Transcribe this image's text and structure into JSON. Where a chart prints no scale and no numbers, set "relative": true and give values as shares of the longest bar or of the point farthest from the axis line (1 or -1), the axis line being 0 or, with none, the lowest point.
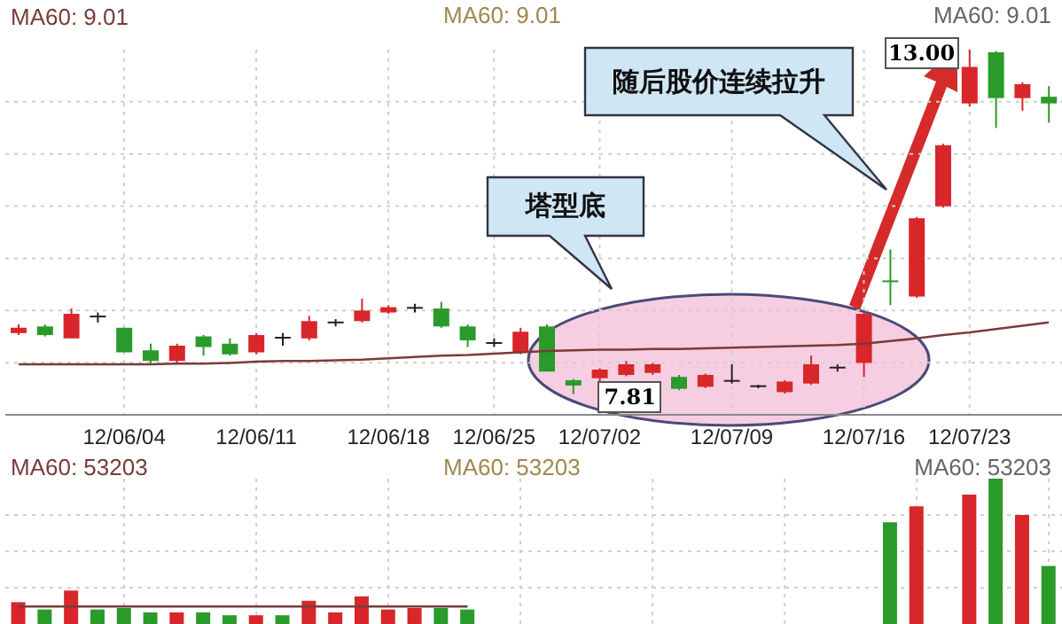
{
  "chart_data": [
    {
      "type": "candlestick",
      "categories": [
        null,
        null,
        null,
        null,
        "12/06/04",
        null,
        null,
        null,
        null,
        "12/06/11",
        null,
        null,
        null,
        null,
        "12/06/18",
        null,
        null,
        null,
        "12/06/25",
        null,
        null,
        null,
        "12/07/02",
        null,
        null,
        null,
        null,
        "12/07/09",
        null,
        null,
        null,
        null,
        "12/07/16",
        null,
        null,
        null,
        "12/07/23",
        null,
        null,
        null
      ],
      "ohlc": [
        [
          8.73,
          8.86,
          8.7,
          8.81
        ],
        [
          8.83,
          8.86,
          8.68,
          8.7
        ],
        [
          8.65,
          9.1,
          8.65,
          9.02
        ],
        [
          8.97,
          9.04,
          8.89,
          8.98
        ],
        [
          8.81,
          8.81,
          8.44,
          8.44
        ],
        [
          8.47,
          8.57,
          8.28,
          8.31
        ],
        [
          8.31,
          8.57,
          8.28,
          8.54
        ],
        [
          8.68,
          8.7,
          8.39,
          8.52
        ],
        [
          8.57,
          8.65,
          8.39,
          8.41
        ],
        [
          8.44,
          8.73,
          8.41,
          8.7
        ],
        [
          8.65,
          8.73,
          8.54,
          8.66
        ],
        [
          8.65,
          8.99,
          8.62,
          8.91
        ],
        [
          8.88,
          8.94,
          8.83,
          8.89
        ],
        [
          8.91,
          9.25,
          8.89,
          9.07
        ],
        [
          9.04,
          9.15,
          9.02,
          9.12
        ],
        [
          9.1,
          9.17,
          9.04,
          9.11
        ],
        [
          9.1,
          9.2,
          8.81,
          8.83
        ],
        [
          8.83,
          8.86,
          8.52,
          8.62
        ],
        [
          8.57,
          8.65,
          8.52,
          8.58
        ],
        [
          8.44,
          8.81,
          8.41,
          8.75
        ],
        [
          8.83,
          8.86,
          8.15,
          8.15
        ],
        [
          8.02,
          8.04,
          7.81,
          7.94
        ],
        [
          8.05,
          8.2,
          7.97,
          8.18
        ],
        [
          8.1,
          8.31,
          8.08,
          8.26
        ],
        [
          8.13,
          8.28,
          8.1,
          8.26
        ],
        [
          8.07,
          8.1,
          7.87,
          7.89
        ],
        [
          7.92,
          8.12,
          7.9,
          8.1
        ],
        [
          8.0,
          8.26,
          7.97,
          8.01
        ],
        [
          7.92,
          7.95,
          7.9,
          7.93
        ],
        [
          7.84,
          8.02,
          7.82,
          8.0
        ],
        [
          7.97,
          8.39,
          7.95,
          8.26
        ],
        [
          8.2,
          8.26,
          8.15,
          8.21
        ],
        [
          8.28,
          9.04,
          8.07,
          9.02
        ],
        [
          9.51,
          9.99,
          9.15,
          9.49
        ],
        [
          9.28,
          10.48,
          9.26,
          10.46
        ],
        [
          10.64,
          11.58,
          10.62,
          11.56
        ],
        [
          12.19,
          13.0,
          12.14,
          12.74
        ],
        [
          12.96,
          12.98,
          11.82,
          12.27
        ],
        [
          12.27,
          12.51,
          12.08,
          12.48
        ],
        [
          12.29,
          12.45,
          11.9,
          12.19
        ]
      ],
      "colors": [
        "#d8262a",
        "#2a9a2a",
        "#d8262a",
        "#222222",
        "#2a9a2a",
        "#2a9a2a",
        "#d8262a",
        "#2a9a2a",
        "#2a9a2a",
        "#d8262a",
        "#222222",
        "#d8262a",
        "#222222",
        "#d8262a",
        "#d8262a",
        "#222222",
        "#2a9a2a",
        "#2a9a2a",
        "#222222",
        "#d8262a",
        "#2a9a2a",
        "#2a9a2a",
        "#d8262a",
        "#d8262a",
        "#d8262a",
        "#2a9a2a",
        "#d8262a",
        "#222222",
        "#222222",
        "#d8262a",
        "#d8262a",
        "#222222",
        "#d8262a",
        "#2a9a2a",
        "#d8262a",
        "#d8262a",
        "#d8262a",
        "#2a9a2a",
        "#d8262a",
        "#2a9a2a"
      ],
      "series": [
        {
          "type": "line",
          "name": "MA60: 9.01",
          "color": "#7a3b3b",
          "values": [
            8.26,
            8.26,
            8.26,
            8.26,
            8.26,
            8.26,
            8.27,
            8.27,
            8.28,
            8.3,
            8.31,
            8.31,
            8.32,
            8.33,
            8.35,
            8.37,
            8.39,
            8.4,
            8.42,
            8.44,
            8.46,
            8.47,
            8.48,
            8.48,
            8.49,
            8.49,
            8.5,
            8.51,
            8.52,
            8.53,
            8.54,
            8.55,
            8.57,
            8.61,
            8.65,
            8.7,
            8.74,
            8.79,
            8.84,
            8.89
          ]
        }
      ],
      "legend": "top left",
      "grid": true,
      "tick_labels": "x",
      "marker": "none",
      "annotations": [
        "MA60: 9.01",
        "MA60: 9.01",
        "塔型底",
        "随后股价连续拉升",
        "13.00",
        "7.81"
      ]
    },
    {
      "type": "bar",
      "relative": true,
      "tick_labels": false,
      "grid": true,
      "legend": "top left",
      "categories": [
        null,
        null,
        null,
        null,
        null,
        null,
        null,
        null,
        null,
        null,
        null,
        null,
        null,
        null,
        null,
        null,
        null,
        null,
        null,
        null,
        null,
        null,
        null,
        null,
        null,
        null,
        null,
        null,
        null,
        null,
        null,
        null,
        null,
        null,
        null,
        null,
        null,
        null,
        null,
        null
      ],
      "series": [
        {
          "type": "bar",
          "colors": [
            "#d8262a",
            "#2a9a2a",
            "#d8262a",
            "#2a9a2a",
            "#2a9a2a",
            "#2a9a2a",
            "#d8262a",
            "#2a9a2a",
            "#2a9a2a",
            "#d8262a",
            "#2a9a2a",
            "#d8262a",
            "#d8262a",
            "#d8262a",
            "#d8262a",
            "#d8262a",
            "#2a9a2a",
            "#2a9a2a",
            "#d8262a",
            "#d8262a",
            "#d8262a",
            "#d8262a",
            "#d8262a",
            "#d8262a",
            "#d8262a",
            "#d8262a",
            "#d8262a",
            "#d8262a",
            "#d8262a",
            "#d8262a",
            "#d8262a",
            "#d8262a",
            "#d8262a",
            "#2a9a2a",
            "#d8262a",
            "#d8262a",
            "#d8262a",
            "#2a9a2a",
            "#d8262a",
            "#2a9a2a"
          ],
          "values": [
            0.15,
            0.1,
            0.23,
            0.1,
            0.11,
            0.08,
            0.08,
            0.08,
            0.06,
            0.06,
            0.06,
            0.16,
            0.08,
            0.19,
            0.1,
            0.11,
            0.11,
            0.1,
            null,
            null,
            null,
            null,
            null,
            null,
            null,
            null,
            null,
            null,
            null,
            null,
            null,
            null,
            null,
            0.7,
            0.81,
            null,
            0.89,
            1,
            0.75,
            0.4
          ]
        },
        {
          "type": "line",
          "name": "MA60: 53203",
          "color": "#7a3b3b",
          "values": [
            0.12,
            0.12,
            0.12,
            0.12,
            0.12,
            0.12,
            0.12,
            0.12,
            0.12,
            0.12,
            0.12,
            0.12,
            0.12,
            0.12,
            0.12,
            0.12,
            0.12,
            0.12,
            null,
            null,
            null,
            null,
            null,
            null,
            null,
            null,
            null,
            null,
            null,
            null,
            null,
            null,
            null,
            null,
            null,
            null,
            null,
            null,
            null,
            null
          ]
        }
      ],
      "marker": "none",
      "annotations": [
        "MA60: 53203",
        "MA60: 53203"
      ]
    }
  ]
}
